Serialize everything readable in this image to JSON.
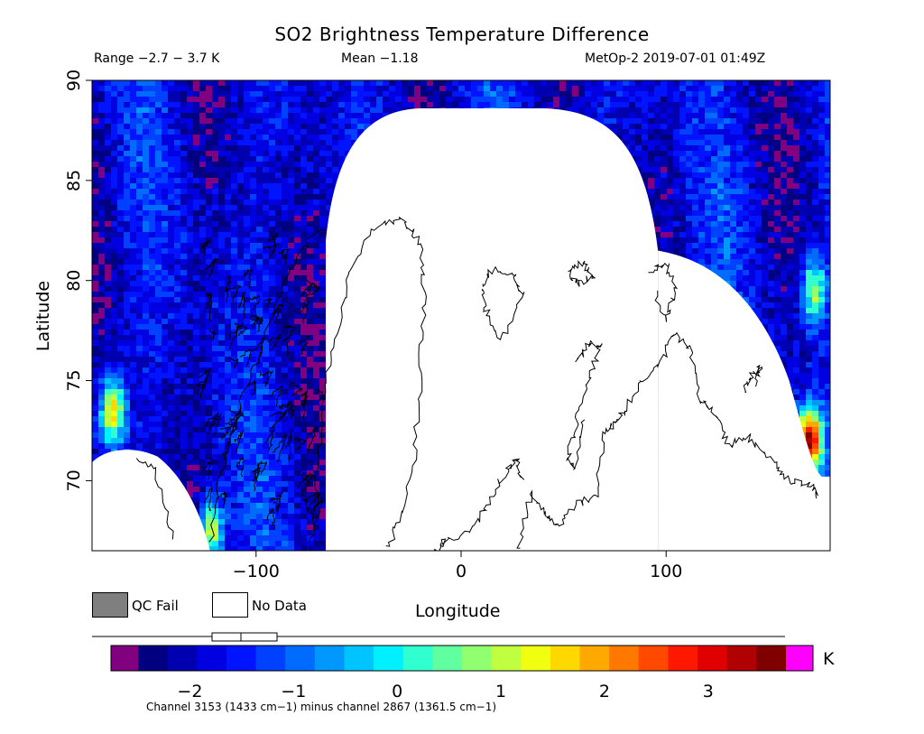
{
  "header": {
    "title": "SO2 Brightness Temperature Difference",
    "range_text": "Range −2.7 − 3.7 K",
    "mean_text": "Mean −1.18",
    "satellite_time": "MetOp-2 2019-07-01 01:49Z"
  },
  "legend": {
    "qc_fail_label": "QC Fail",
    "no_data_label": "No Data",
    "qc_fail_color": "#7f7f7f",
    "no_data_color": "#ffffff"
  },
  "colorbar": {
    "unit": "K",
    "min": -2.5,
    "max": 3.75,
    "ticks": [
      {
        "value": -2,
        "label": "−2"
      },
      {
        "value": -1,
        "label": "−1"
      },
      {
        "value": 0,
        "label": "0"
      },
      {
        "value": 1,
        "label": "1"
      },
      {
        "value": 2,
        "label": "2"
      },
      {
        "value": 3,
        "label": "3"
      }
    ],
    "under_color": "#800080",
    "over_color": "#ff00ff",
    "colors": [
      "#000080",
      "#0000b0",
      "#0000e0",
      "#0014ff",
      "#0040ff",
      "#006cff",
      "#0098ff",
      "#00c4ff",
      "#00f0ff",
      "#30ffd0",
      "#60ffa0",
      "#90ff70",
      "#c0ff40",
      "#f0ff10",
      "#ffd800",
      "#ffa800",
      "#ff7800",
      "#ff4800",
      "#ff1800",
      "#e00000",
      "#b00000",
      "#800000"
    ],
    "caption": "Channel 3153 (1433 cm−1) minus channel 2867 (1361.5 cm−1)"
  },
  "chart_data": {
    "type": "heatmap",
    "title": "SO2 Brightness Temperature Difference",
    "xlabel": "Longitude",
    "ylabel": "Latitude",
    "xlim": [
      -180,
      180
    ],
    "ylim": [
      66.5,
      90
    ],
    "x_ticks": [
      {
        "value": -100,
        "label": "−100"
      },
      {
        "value": 0,
        "label": "0"
      },
      {
        "value": 100,
        "label": "100"
      }
    ],
    "y_ticks": [
      {
        "value": 70,
        "label": "70"
      },
      {
        "value": 75,
        "label": "75"
      },
      {
        "value": 80,
        "label": "80"
      },
      {
        "value": 85,
        "label": "85"
      },
      {
        "value": 90,
        "label": "90"
      }
    ],
    "value_range": [
      -2.7,
      3.7
    ],
    "mean": -1.18,
    "unit": "K",
    "background_value": -1.8,
    "hotspots": [
      {
        "lon": 170,
        "lat": 72,
        "value": 3.4
      },
      {
        "lon": -170,
        "lat": 73.5,
        "value": 1.9
      },
      {
        "lon": -122,
        "lat": 67.5,
        "value": 1.4
      },
      {
        "lon": 172,
        "lat": 79.5,
        "value": 1.0
      }
    ],
    "no_data_regions": [
      {
        "name": "central swath gap",
        "lon_min": -65,
        "lon_max": 95,
        "lat_max": 88.5
      },
      {
        "name": "eastern gap",
        "lon_min": 100,
        "lon_max": 175,
        "lat_max": 81
      },
      {
        "name": "south-west gap",
        "lon_min": -180,
        "lon_max": -125,
        "lat_max": 71.5
      }
    ]
  }
}
